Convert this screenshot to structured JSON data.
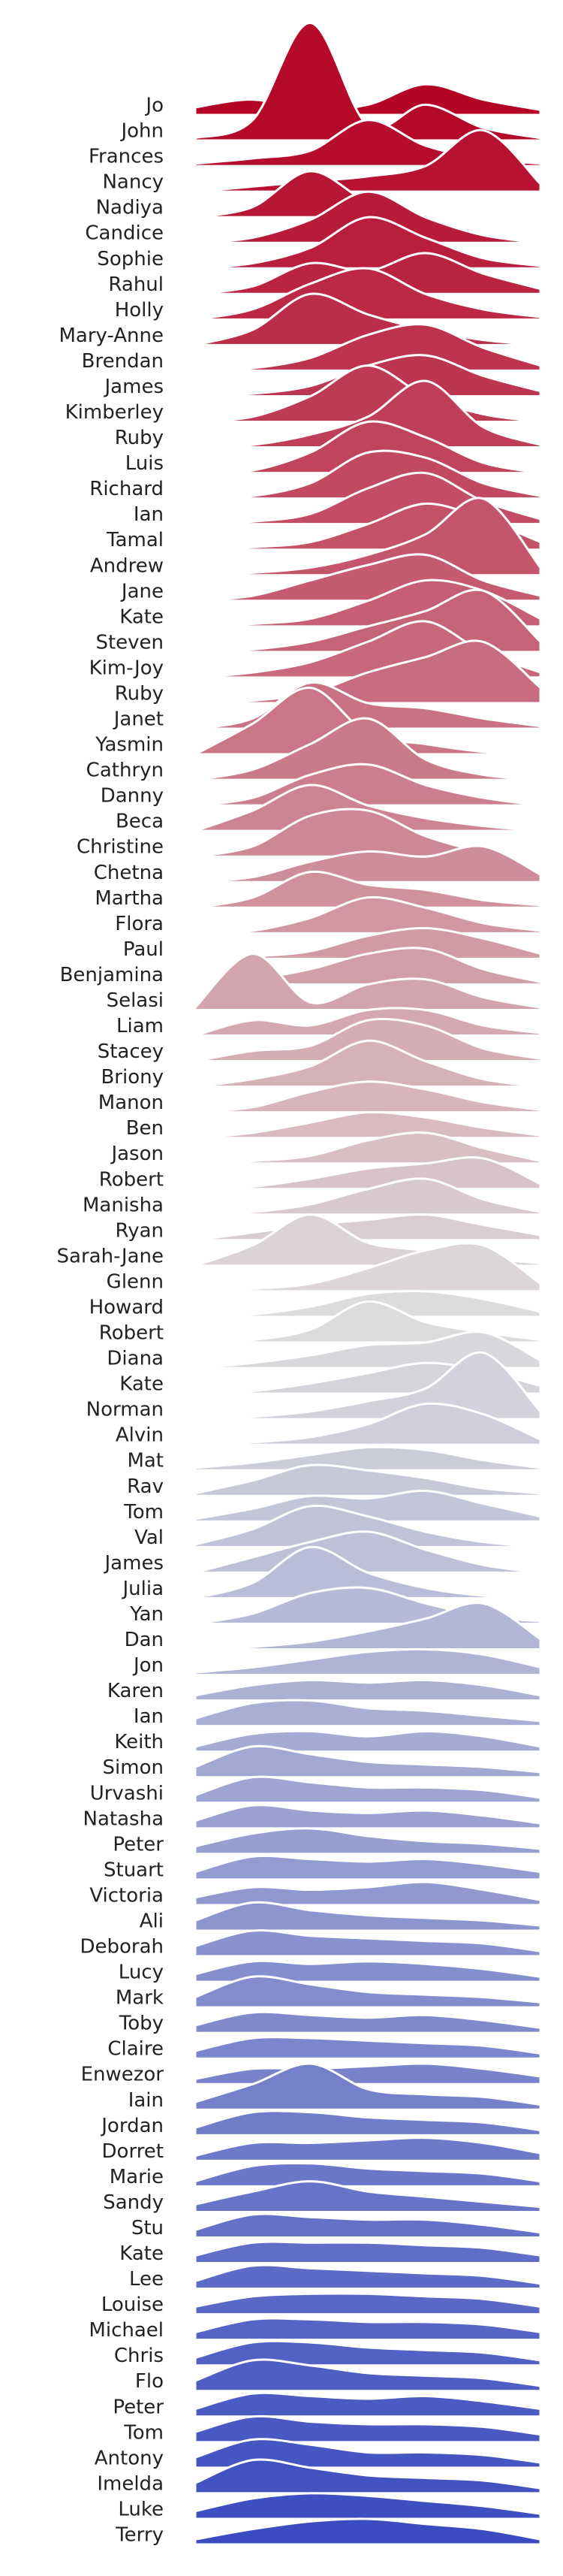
{
  "chart_data": {
    "type": "ridgeline",
    "colormap": [
      "#b40426",
      "#dddddd",
      "#3b4cc0"
    ],
    "x": [
      0,
      1,
      2,
      3,
      4,
      5,
      6
    ],
    "series": [
      {
        "name": "Jo",
        "values": [
          0.3,
          0.6,
          0.2,
          0.4,
          1.2,
          0.6,
          0.2
        ]
      },
      {
        "name": "John",
        "values": [
          0.1,
          0.8,
          4.6,
          0.6,
          1.4,
          0.5,
          0.1
        ]
      },
      {
        "name": "Frances",
        "values": [
          0.1,
          0.3,
          0.6,
          1.8,
          0.8,
          0.3,
          0.1
        ]
      },
      {
        "name": "Nancy",
        "values": [
          0.0,
          0.2,
          0.4,
          0.6,
          1.0,
          2.4,
          0.3
        ]
      },
      {
        "name": "Nadiya",
        "values": [
          0.0,
          0.4,
          1.8,
          0.6,
          0.1,
          0.0,
          0.0
        ]
      },
      {
        "name": "Candice",
        "values": [
          0.0,
          0.2,
          0.9,
          2.0,
          1.0,
          0.3,
          0.0
        ]
      },
      {
        "name": "Sophie",
        "values": [
          0.0,
          0.2,
          0.8,
          2.0,
          1.2,
          0.4,
          0.1
        ]
      },
      {
        "name": "Rahul",
        "values": [
          0.0,
          0.3,
          1.2,
          0.9,
          1.6,
          0.8,
          0.2
        ]
      },
      {
        "name": "Holly",
        "values": [
          0.0,
          0.4,
          1.4,
          2.0,
          1.0,
          0.4,
          0.1
        ]
      },
      {
        "name": "Mary-Anne",
        "values": [
          0.0,
          0.6,
          2.0,
          1.2,
          0.6,
          0.2,
          0.0
        ]
      },
      {
        "name": "Brendan",
        "values": [
          0.0,
          0.1,
          0.5,
          1.4,
          1.8,
          0.9,
          0.2
        ]
      },
      {
        "name": "James",
        "values": [
          0.0,
          0.1,
          0.4,
          1.2,
          1.6,
          0.8,
          0.2
        ]
      },
      {
        "name": "Kimberley",
        "values": [
          0.0,
          0.2,
          1.0,
          2.2,
          1.0,
          0.3,
          0.0
        ]
      },
      {
        "name": "Ruby",
        "values": [
          0.0,
          0.1,
          0.5,
          1.2,
          2.6,
          0.8,
          0.1
        ]
      },
      {
        "name": "Luis",
        "values": [
          0.0,
          0.1,
          0.8,
          2.0,
          1.4,
          0.4,
          0.0
        ]
      },
      {
        "name": "Richard",
        "values": [
          0.0,
          0.1,
          0.6,
          1.8,
          1.6,
          0.6,
          0.1
        ]
      },
      {
        "name": "Ian",
        "values": [
          0.0,
          0.1,
          0.4,
          1.4,
          2.0,
          0.9,
          0.2
        ]
      },
      {
        "name": "Tamal",
        "values": [
          0.0,
          0.1,
          0.3,
          1.0,
          1.8,
          1.2,
          0.3
        ]
      },
      {
        "name": "Andrew",
        "values": [
          0.0,
          0.1,
          0.3,
          0.8,
          1.6,
          3.0,
          0.3
        ]
      },
      {
        "name": "Jane",
        "values": [
          0.0,
          0.2,
          0.8,
          1.4,
          1.8,
          0.8,
          0.2
        ]
      },
      {
        "name": "Kate",
        "values": [
          0.0,
          0.1,
          0.3,
          1.0,
          1.8,
          1.4,
          0.3
        ]
      },
      {
        "name": "Steven",
        "values": [
          0.0,
          0.1,
          0.4,
          1.0,
          1.6,
          2.4,
          0.4
        ]
      },
      {
        "name": "Kim-Joy",
        "values": [
          0.0,
          0.2,
          0.6,
          1.4,
          2.2,
          1.0,
          0.2
        ]
      },
      {
        "name": "Ruby",
        "values": [
          0.0,
          0.1,
          0.4,
          1.2,
          1.8,
          2.4,
          0.6
        ]
      },
      {
        "name": "Janet",
        "values": [
          0.0,
          0.4,
          1.8,
          1.0,
          0.8,
          0.4,
          0.1
        ]
      },
      {
        "name": "Yasmin",
        "values": [
          0.0,
          1.2,
          2.6,
          0.8,
          0.4,
          0.1,
          0.0
        ]
      },
      {
        "name": "Cathryn",
        "values": [
          0.0,
          0.4,
          1.4,
          2.4,
          0.8,
          0.2,
          0.0
        ]
      },
      {
        "name": "Danny",
        "values": [
          0.0,
          0.3,
          1.2,
          1.6,
          0.8,
          0.3,
          0.0
        ]
      },
      {
        "name": "Beca",
        "values": [
          0.0,
          0.8,
          1.8,
          1.0,
          0.5,
          0.2,
          0.0
        ]
      },
      {
        "name": "Christine",
        "values": [
          0.0,
          0.4,
          1.6,
          1.8,
          0.8,
          0.2,
          0.0
        ]
      },
      {
        "name": "Chetna",
        "values": [
          0.0,
          0.2,
          0.8,
          1.2,
          1.0,
          1.4,
          0.3
        ]
      },
      {
        "name": "Martha",
        "values": [
          0.0,
          0.4,
          1.4,
          0.9,
          0.7,
          0.3,
          0.1
        ]
      },
      {
        "name": "Flora",
        "values": [
          0.0,
          0.1,
          0.6,
          1.4,
          1.0,
          0.4,
          0.1
        ]
      },
      {
        "name": "Paul",
        "values": [
          0.0,
          0.1,
          0.3,
          0.9,
          1.2,
          0.8,
          0.2
        ]
      },
      {
        "name": "Benjamina",
        "values": [
          0.0,
          0.2,
          0.6,
          1.2,
          1.4,
          0.6,
          0.1
        ]
      },
      {
        "name": "Selasi",
        "values": [
          0.1,
          2.2,
          0.3,
          1.0,
          1.2,
          0.5,
          0.1
        ]
      },
      {
        "name": "Liam",
        "values": [
          0.0,
          0.6,
          0.4,
          1.0,
          1.0,
          0.4,
          0.1
        ]
      },
      {
        "name": "Stacey",
        "values": [
          0.0,
          0.4,
          0.6,
          1.6,
          1.4,
          0.5,
          0.1
        ]
      },
      {
        "name": "Briony",
        "values": [
          0.0,
          0.3,
          0.8,
          1.8,
          1.0,
          0.3,
          0.0
        ]
      },
      {
        "name": "Manon",
        "values": [
          0.0,
          0.2,
          0.8,
          1.2,
          0.9,
          0.4,
          0.1
        ]
      },
      {
        "name": "Ben",
        "values": [
          0.0,
          0.2,
          0.6,
          1.0,
          0.8,
          0.4,
          0.1
        ]
      },
      {
        "name": "Jason",
        "values": [
          0.0,
          0.1,
          0.3,
          0.9,
          1.2,
          0.6,
          0.1
        ]
      },
      {
        "name": "Robert",
        "values": [
          0.0,
          0.1,
          0.4,
          0.8,
          1.0,
          1.2,
          0.2
        ]
      },
      {
        "name": "Manisha",
        "values": [
          0.0,
          0.1,
          0.4,
          1.0,
          1.4,
          0.6,
          0.1
        ]
      },
      {
        "name": "Ryan",
        "values": [
          0.0,
          0.3,
          0.6,
          0.8,
          1.0,
          0.6,
          0.2
        ]
      },
      {
        "name": "Sarah-Jane",
        "values": [
          0.0,
          0.8,
          2.0,
          0.9,
          0.6,
          0.3,
          0.1
        ]
      },
      {
        "name": "Glenn",
        "values": [
          0.0,
          0.1,
          0.3,
          0.9,
          1.6,
          1.8,
          0.3
        ]
      },
      {
        "name": "Howard",
        "values": [
          0.0,
          0.1,
          0.4,
          0.9,
          1.0,
          0.7,
          0.2
        ]
      },
      {
        "name": "Robert",
        "values": [
          0.0,
          0.1,
          0.5,
          1.6,
          0.8,
          0.4,
          0.1
        ]
      },
      {
        "name": "Diana",
        "values": [
          0.0,
          0.2,
          0.5,
          0.9,
          1.0,
          1.4,
          0.3
        ]
      },
      {
        "name": "Kate",
        "values": [
          0.0,
          0.1,
          0.4,
          0.8,
          1.2,
          0.9,
          0.3
        ]
      },
      {
        "name": "Norman",
        "values": [
          0.0,
          0.1,
          0.3,
          0.7,
          1.2,
          2.6,
          0.3
        ]
      },
      {
        "name": "Alvin",
        "values": [
          0.0,
          0.1,
          0.3,
          0.8,
          1.6,
          1.2,
          0.2
        ]
      },
      {
        "name": "Mat",
        "values": [
          0.1,
          0.3,
          0.6,
          0.9,
          0.8,
          0.4,
          0.1
        ]
      },
      {
        "name": "Rav",
        "values": [
          0.1,
          0.6,
          1.2,
          1.0,
          0.7,
          0.3,
          0.1
        ]
      },
      {
        "name": "Tom",
        "values": [
          0.1,
          0.5,
          1.0,
          0.9,
          1.2,
          0.7,
          0.2
        ]
      },
      {
        "name": "Val",
        "values": [
          0.1,
          0.7,
          1.6,
          1.2,
          0.6,
          0.2,
          0.0
        ]
      },
      {
        "name": "James",
        "values": [
          0.0,
          0.6,
          1.2,
          1.6,
          0.9,
          0.3,
          0.0
        ]
      },
      {
        "name": "Julia",
        "values": [
          0.0,
          0.6,
          2.0,
          1.0,
          0.4,
          0.1,
          0.0
        ]
      },
      {
        "name": "Yan",
        "values": [
          0.0,
          0.4,
          1.2,
          1.4,
          0.8,
          0.3,
          0.1
        ]
      },
      {
        "name": "Dan",
        "values": [
          0.0,
          0.1,
          0.3,
          0.7,
          1.2,
          1.8,
          0.4
        ]
      },
      {
        "name": "Jon",
        "values": [
          0.1,
          0.3,
          0.6,
          0.9,
          1.0,
          0.8,
          0.3
        ]
      },
      {
        "name": "Karen",
        "values": [
          0.2,
          0.6,
          0.8,
          0.7,
          0.8,
          0.6,
          0.2
        ]
      },
      {
        "name": "Ian",
        "values": [
          0.3,
          0.9,
          1.0,
          0.7,
          0.6,
          0.4,
          0.2
        ]
      },
      {
        "name": "Keith",
        "values": [
          0.2,
          0.7,
          0.8,
          0.6,
          0.8,
          0.6,
          0.2
        ]
      },
      {
        "name": "Simon",
        "values": [
          0.4,
          1.2,
          0.9,
          0.6,
          0.5,
          0.4,
          0.2
        ]
      },
      {
        "name": "Urvashi",
        "values": [
          0.3,
          1.0,
          0.8,
          0.6,
          0.6,
          0.5,
          0.2
        ]
      },
      {
        "name": "Natasha",
        "values": [
          0.3,
          0.9,
          0.7,
          0.6,
          0.7,
          0.5,
          0.2
        ]
      },
      {
        "name": "Peter",
        "values": [
          0.3,
          0.8,
          1.0,
          0.7,
          0.5,
          0.4,
          0.2
        ]
      },
      {
        "name": "Stuart",
        "values": [
          0.3,
          0.9,
          0.8,
          0.7,
          0.8,
          0.6,
          0.3
        ]
      },
      {
        "name": "Victoria",
        "values": [
          0.3,
          0.7,
          0.6,
          0.7,
          0.9,
          0.6,
          0.2
        ]
      },
      {
        "name": "Ali",
        "values": [
          0.4,
          1.1,
          0.8,
          0.6,
          0.5,
          0.4,
          0.2
        ]
      },
      {
        "name": "Deborah",
        "values": [
          0.4,
          1.0,
          0.8,
          0.7,
          0.6,
          0.5,
          0.2
        ]
      },
      {
        "name": "Lucy",
        "values": [
          0.3,
          0.8,
          0.7,
          0.8,
          0.7,
          0.5,
          0.2
        ]
      },
      {
        "name": "Mark",
        "values": [
          0.4,
          1.2,
          0.9,
          0.6,
          0.5,
          0.4,
          0.2
        ]
      },
      {
        "name": "Toby",
        "values": [
          0.3,
          0.8,
          0.7,
          0.6,
          0.7,
          0.5,
          0.2
        ]
      },
      {
        "name": "Claire",
        "values": [
          0.3,
          0.8,
          0.8,
          0.7,
          0.6,
          0.5,
          0.2
        ]
      },
      {
        "name": "Enwezor",
        "values": [
          0.2,
          0.6,
          0.6,
          0.7,
          0.8,
          0.6,
          0.3
        ]
      },
      {
        "name": "Iain",
        "values": [
          0.3,
          1.0,
          1.8,
          0.8,
          0.6,
          0.5,
          0.2
        ]
      },
      {
        "name": "Jordan",
        "values": [
          0.3,
          0.9,
          0.9,
          0.7,
          0.6,
          0.5,
          0.2
        ]
      },
      {
        "name": "Dorret",
        "values": [
          0.2,
          0.7,
          0.7,
          0.8,
          0.9,
          0.7,
          0.3
        ]
      },
      {
        "name": "Marie",
        "values": [
          0.2,
          0.8,
          0.9,
          0.7,
          0.6,
          0.5,
          0.2
        ]
      },
      {
        "name": "Sandy",
        "values": [
          0.3,
          0.8,
          1.2,
          0.8,
          0.6,
          0.4,
          0.2
        ]
      },
      {
        "name": "Stu",
        "values": [
          0.3,
          0.9,
          0.8,
          0.7,
          0.7,
          0.5,
          0.2
        ]
      },
      {
        "name": "Kate",
        "values": [
          0.3,
          0.8,
          0.8,
          0.8,
          0.7,
          0.6,
          0.3
        ]
      },
      {
        "name": "Lee",
        "values": [
          0.3,
          0.9,
          0.8,
          0.7,
          0.6,
          0.5,
          0.2
        ]
      },
      {
        "name": "Louise",
        "values": [
          0.3,
          0.7,
          0.8,
          0.8,
          0.7,
          0.6,
          0.3
        ]
      },
      {
        "name": "Michael",
        "values": [
          0.3,
          0.8,
          0.8,
          0.7,
          0.7,
          0.6,
          0.3
        ]
      },
      {
        "name": "Chris",
        "values": [
          0.3,
          0.9,
          0.9,
          0.7,
          0.6,
          0.5,
          0.2
        ]
      },
      {
        "name": "Flo",
        "values": [
          0.4,
          1.2,
          1.0,
          0.7,
          0.6,
          0.5,
          0.2
        ]
      },
      {
        "name": "Peter",
        "values": [
          0.3,
          0.9,
          0.8,
          0.7,
          0.8,
          0.6,
          0.3
        ]
      },
      {
        "name": "Tom",
        "values": [
          0.4,
          1.0,
          0.8,
          0.7,
          0.7,
          0.6,
          0.3
        ]
      },
      {
        "name": "Antony",
        "values": [
          0.4,
          1.1,
          0.9,
          0.6,
          0.6,
          0.5,
          0.2
        ]
      },
      {
        "name": "Imelda",
        "values": [
          0.4,
          1.3,
          1.0,
          0.7,
          0.6,
          0.5,
          0.2
        ]
      },
      {
        "name": "Luke",
        "values": [
          0.3,
          0.8,
          1.0,
          0.9,
          0.7,
          0.5,
          0.2
        ]
      },
      {
        "name": "Terry",
        "values": [
          0.2,
          0.6,
          0.9,
          1.0,
          0.8,
          0.6,
          0.2
        ]
      }
    ]
  }
}
